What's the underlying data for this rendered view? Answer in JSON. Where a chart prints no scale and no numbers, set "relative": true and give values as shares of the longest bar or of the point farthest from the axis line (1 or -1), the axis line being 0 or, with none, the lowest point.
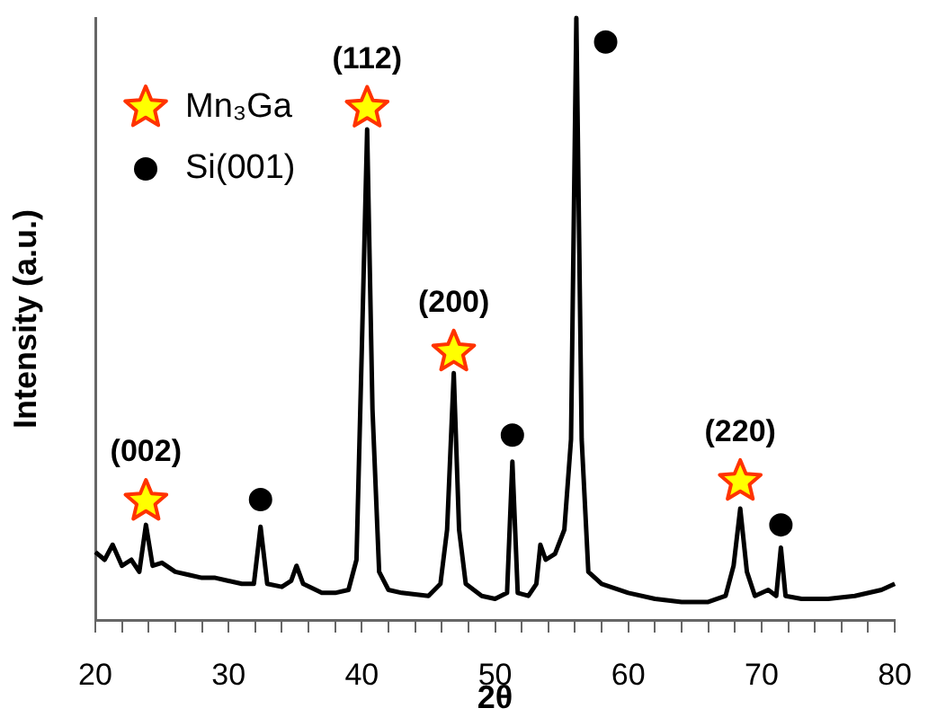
{
  "chart_data": {
    "type": "line",
    "xlabel": "2θ",
    "ylabel": "Intensity (a.u.)",
    "relative": true,
    "grid": false,
    "legend": "top left",
    "tick_labels": "x",
    "line_style": "solid",
    "xlim": [
      20,
      80
    ],
    "xticks": [
      20,
      {
        "value": 22,
        "label": null
      },
      {
        "value": 24,
        "label": null
      },
      {
        "value": 26,
        "label": null
      },
      {
        "value": 28,
        "label": null
      },
      30,
      {
        "value": 32,
        "label": null
      },
      {
        "value": 34,
        "label": null
      },
      {
        "value": 36,
        "label": null
      },
      {
        "value": 38,
        "label": null
      },
      40,
      {
        "value": 42,
        "label": null
      },
      {
        "value": 44,
        "label": null
      },
      {
        "value": 46,
        "label": null
      },
      {
        "value": 48,
        "label": null
      },
      50,
      {
        "value": 52,
        "label": null
      },
      {
        "value": 54,
        "label": null
      },
      {
        "value": 56,
        "label": null
      },
      {
        "value": 58,
        "label": null
      },
      60,
      {
        "value": 62,
        "label": null
      },
      {
        "value": 64,
        "label": null
      },
      {
        "value": 66,
        "label": null
      },
      {
        "value": 68,
        "label": null
      },
      70,
      {
        "value": 72,
        "label": null
      },
      {
        "value": 74,
        "label": null
      },
      {
        "value": 76,
        "label": null
      },
      {
        "value": 78,
        "label": null
      },
      80
    ],
    "series": [
      {
        "type": "line",
        "marker": "none",
        "color": "#000000",
        "x": [
          20,
          20.7,
          21.3,
          22,
          22.7,
          23.3,
          23.8,
          24.3,
          25,
          26,
          27,
          28,
          29,
          30,
          31,
          31.9,
          32.4,
          32.9,
          34,
          34.7,
          35.1,
          35.6,
          37,
          38,
          39,
          39.6,
          40.0,
          40.4,
          40.8,
          41.3,
          42,
          43,
          45,
          45.9,
          46.4,
          46.9,
          47.3,
          47.8,
          49,
          50,
          50.9,
          51.3,
          51.7,
          52.5,
          53.1,
          53.4,
          53.8,
          54.5,
          55.2,
          55.7,
          56.1,
          56.5,
          57,
          58,
          60,
          62,
          64,
          66,
          67.3,
          67.9,
          68.4,
          68.9,
          69.5,
          70.5,
          71.1,
          71.45,
          71.8,
          73,
          75,
          77,
          79,
          80
        ],
        "values": [
          0.113,
          0.1,
          0.125,
          0.09,
          0.1,
          0.08,
          0.158,
          0.09,
          0.095,
          0.08,
          0.075,
          0.07,
          0.07,
          0.065,
          0.06,
          0.06,
          0.155,
          0.06,
          0.055,
          0.065,
          0.09,
          0.06,
          0.045,
          0.045,
          0.05,
          0.1,
          0.45,
          0.815,
          0.35,
          0.08,
          0.05,
          0.045,
          0.04,
          0.06,
          0.15,
          0.41,
          0.15,
          0.06,
          0.04,
          0.035,
          0.045,
          0.263,
          0.045,
          0.04,
          0.06,
          0.125,
          0.1,
          0.11,
          0.15,
          0.3,
          1,
          0.3,
          0.08,
          0.06,
          0.045,
          0.035,
          0.03,
          0.03,
          0.04,
          0.09,
          0.185,
          0.08,
          0.04,
          0.05,
          0.04,
          0.12,
          0.04,
          0.035,
          0.035,
          0.04,
          0.05,
          0.06
        ]
      },
      {
        "type": "scatter",
        "name": "Mn₃Ga",
        "marker": "star",
        "color": "#ff3300",
        "x": [
          23.8,
          40.4,
          46.9,
          68.4
        ],
        "values": [
          0.197,
          0.85,
          0.445,
          0.23
        ]
      },
      {
        "type": "scatter",
        "name": "Si(001)",
        "marker": "circle",
        "color": "#000000",
        "x": [
          32.4,
          51.3,
          58.3,
          71.45
        ],
        "values": [
          0.2,
          0.307,
          0.96,
          0.158
        ]
      }
    ],
    "annotations": [
      "(002)",
      "(112)",
      "(200)",
      "(220)"
    ]
  }
}
